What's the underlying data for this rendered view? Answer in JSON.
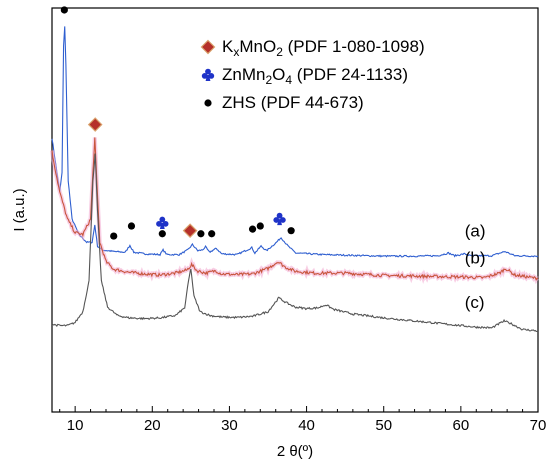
{
  "chart_data": {
    "type": "line",
    "xlabel": "2 θ(º)",
    "ylabel": "I (a.u.)",
    "xlim": [
      7,
      70
    ],
    "x_ticks": [
      10,
      20,
      30,
      40,
      50,
      60,
      70
    ],
    "x_tick_labels": [
      "10",
      "20",
      "30",
      "40",
      "50",
      "60",
      "70"
    ],
    "y_ticks_shown": false,
    "grid": false,
    "legend_placement": "top-center",
    "legend": [
      {
        "symbol": "diamond",
        "color": "#b5302a",
        "label": "KxMnO2",
        "label_main": "K",
        "label_sub1": "x",
        "label_mid": "MnO",
        "label_sub2": "2",
        "ref": "(PDF 1-080-1098)"
      },
      {
        "symbol": "club",
        "color": "#1f33c8",
        "label": "ZnMn2O4",
        "label_main": "ZnMn",
        "label_sub1": "2",
        "label_mid": "O",
        "label_sub2": "4",
        "ref": "(PDF 24-1133)"
      },
      {
        "symbol": "dot",
        "color": "#000000",
        "label": "ZHS",
        "label_main": "ZHS",
        "label_sub1": "",
        "label_mid": "",
        "label_sub2": "",
        "ref": "(PDF 44-673)"
      }
    ],
    "series": [
      {
        "name": "(a)",
        "color": "#2f5fd0",
        "points": [
          [
            7,
            0.71
          ],
          [
            7.5,
            0.64
          ],
          [
            8,
            0.57
          ],
          [
            8.3,
            0.62
          ],
          [
            8.5,
            0.95
          ],
          [
            8.65,
            1.0
          ],
          [
            8.8,
            0.9
          ],
          [
            9.1,
            0.6
          ],
          [
            9.6,
            0.5
          ],
          [
            10.5,
            0.46
          ],
          [
            11.5,
            0.44
          ],
          [
            12.2,
            0.44
          ],
          [
            12.55,
            0.485
          ],
          [
            12.9,
            0.43
          ],
          [
            13.5,
            0.42
          ],
          [
            15,
            0.416
          ],
          [
            16.5,
            0.414
          ],
          [
            17.1,
            0.432
          ],
          [
            17.6,
            0.414
          ],
          [
            19,
            0.41
          ],
          [
            21,
            0.408
          ],
          [
            21.4,
            0.42
          ],
          [
            21.9,
            0.408
          ],
          [
            23.5,
            0.408
          ],
          [
            24.6,
            0.42
          ],
          [
            25.2,
            0.434
          ],
          [
            25.9,
            0.418
          ],
          [
            26.5,
            0.42
          ],
          [
            26.9,
            0.428
          ],
          [
            27.4,
            0.414
          ],
          [
            28.3,
            0.424
          ],
          [
            29,
            0.41
          ],
          [
            31,
            0.408
          ],
          [
            32.9,
            0.426
          ],
          [
            33.3,
            0.412
          ],
          [
            34.1,
            0.43
          ],
          [
            34.8,
            0.418
          ],
          [
            36,
            0.438
          ],
          [
            36.7,
            0.452
          ],
          [
            37.6,
            0.43
          ],
          [
            38.6,
            0.412
          ],
          [
            42,
            0.408
          ],
          [
            46,
            0.406
          ],
          [
            50,
            0.404
          ],
          [
            54,
            0.404
          ],
          [
            57,
            0.405
          ],
          [
            58.4,
            0.412
          ],
          [
            59.2,
            0.405
          ],
          [
            60.5,
            0.41
          ],
          [
            61.2,
            0.405
          ],
          [
            64,
            0.405
          ],
          [
            65.7,
            0.416
          ],
          [
            67,
            0.405
          ],
          [
            70,
            0.404
          ]
        ]
      },
      {
        "name": "(b)",
        "color": "#c8553d",
        "points": [
          [
            7,
            0.675
          ],
          [
            7.5,
            0.62
          ],
          [
            8,
            0.57
          ],
          [
            9,
            0.5
          ],
          [
            10,
            0.465
          ],
          [
            11,
            0.46
          ],
          [
            12,
            0.5
          ],
          [
            12.3,
            0.62
          ],
          [
            12.55,
            0.71
          ],
          [
            12.8,
            0.6
          ],
          [
            13.2,
            0.44
          ],
          [
            14,
            0.39
          ],
          [
            15,
            0.37
          ],
          [
            17,
            0.362
          ],
          [
            19,
            0.358
          ],
          [
            21,
            0.355
          ],
          [
            23,
            0.36
          ],
          [
            24.5,
            0.368
          ],
          [
            25.1,
            0.382
          ],
          [
            25.8,
            0.366
          ],
          [
            27,
            0.36
          ],
          [
            28.2,
            0.366
          ],
          [
            29,
            0.358
          ],
          [
            31,
            0.356
          ],
          [
            33,
            0.358
          ],
          [
            35,
            0.372
          ],
          [
            36.3,
            0.39
          ],
          [
            37.2,
            0.376
          ],
          [
            38.5,
            0.365
          ],
          [
            41,
            0.36
          ],
          [
            45,
            0.36
          ],
          [
            50,
            0.354
          ],
          [
            55,
            0.352
          ],
          [
            60,
            0.35
          ],
          [
            63,
            0.348
          ],
          [
            65,
            0.36
          ],
          [
            65.8,
            0.372
          ],
          [
            67,
            0.355
          ],
          [
            70,
            0.346
          ]
        ]
      },
      {
        "name": "(c)",
        "color": "#555555",
        "points": [
          [
            7,
            0.227
          ],
          [
            8,
            0.224
          ],
          [
            9,
            0.224
          ],
          [
            10,
            0.232
          ],
          [
            11,
            0.26
          ],
          [
            11.8,
            0.34
          ],
          [
            12.3,
            0.6
          ],
          [
            12.6,
            0.668
          ],
          [
            12.9,
            0.52
          ],
          [
            13.4,
            0.34
          ],
          [
            14.2,
            0.272
          ],
          [
            15.5,
            0.25
          ],
          [
            17,
            0.244
          ],
          [
            19,
            0.242
          ],
          [
            21,
            0.244
          ],
          [
            23,
            0.25
          ],
          [
            24.2,
            0.27
          ],
          [
            24.7,
            0.34
          ],
          [
            25,
            0.372
          ],
          [
            25.4,
            0.3
          ],
          [
            26.2,
            0.26
          ],
          [
            27.5,
            0.25
          ],
          [
            29,
            0.246
          ],
          [
            31,
            0.245
          ],
          [
            33,
            0.248
          ],
          [
            35,
            0.26
          ],
          [
            36.4,
            0.296
          ],
          [
            37.3,
            0.284
          ],
          [
            38.5,
            0.272
          ],
          [
            40,
            0.268
          ],
          [
            41.5,
            0.27
          ],
          [
            42.5,
            0.278
          ],
          [
            43.5,
            0.266
          ],
          [
            46,
            0.254
          ],
          [
            50,
            0.244
          ],
          [
            54,
            0.236
          ],
          [
            58,
            0.228
          ],
          [
            62,
            0.22
          ],
          [
            64,
            0.218
          ],
          [
            65.6,
            0.236
          ],
          [
            66.4,
            0.23
          ],
          [
            68,
            0.214
          ],
          [
            70,
            0.21
          ]
        ]
      }
    ],
    "markers": [
      {
        "type": "dot",
        "x": 8.6,
        "y": 1.042
      },
      {
        "type": "diamond",
        "x": 12.6,
        "y": 0.745
      },
      {
        "type": "dot",
        "x": 15.0,
        "y": 0.456
      },
      {
        "type": "dot",
        "x": 17.3,
        "y": 0.482
      },
      {
        "type": "club",
        "x": 21.3,
        "y": 0.49
      },
      {
        "type": "dot",
        "x": 21.3,
        "y": 0.462
      },
      {
        "type": "diamond",
        "x": 24.9,
        "y": 0.47
      },
      {
        "type": "dot",
        "x": 26.3,
        "y": 0.462
      },
      {
        "type": "dot",
        "x": 27.7,
        "y": 0.462
      },
      {
        "type": "dot",
        "x": 33.0,
        "y": 0.474
      },
      {
        "type": "dot",
        "x": 34.0,
        "y": 0.482
      },
      {
        "type": "club",
        "x": 36.5,
        "y": 0.5
      },
      {
        "type": "dot",
        "x": 38.0,
        "y": 0.47
      }
    ],
    "curve_labels": [
      {
        "text": "(a)",
        "x": 60.5,
        "y": 0.455
      },
      {
        "text": "(b)",
        "x": 60.5,
        "y": 0.385
      },
      {
        "text": "(c)",
        "x": 60.5,
        "y": 0.27
      }
    ]
  }
}
